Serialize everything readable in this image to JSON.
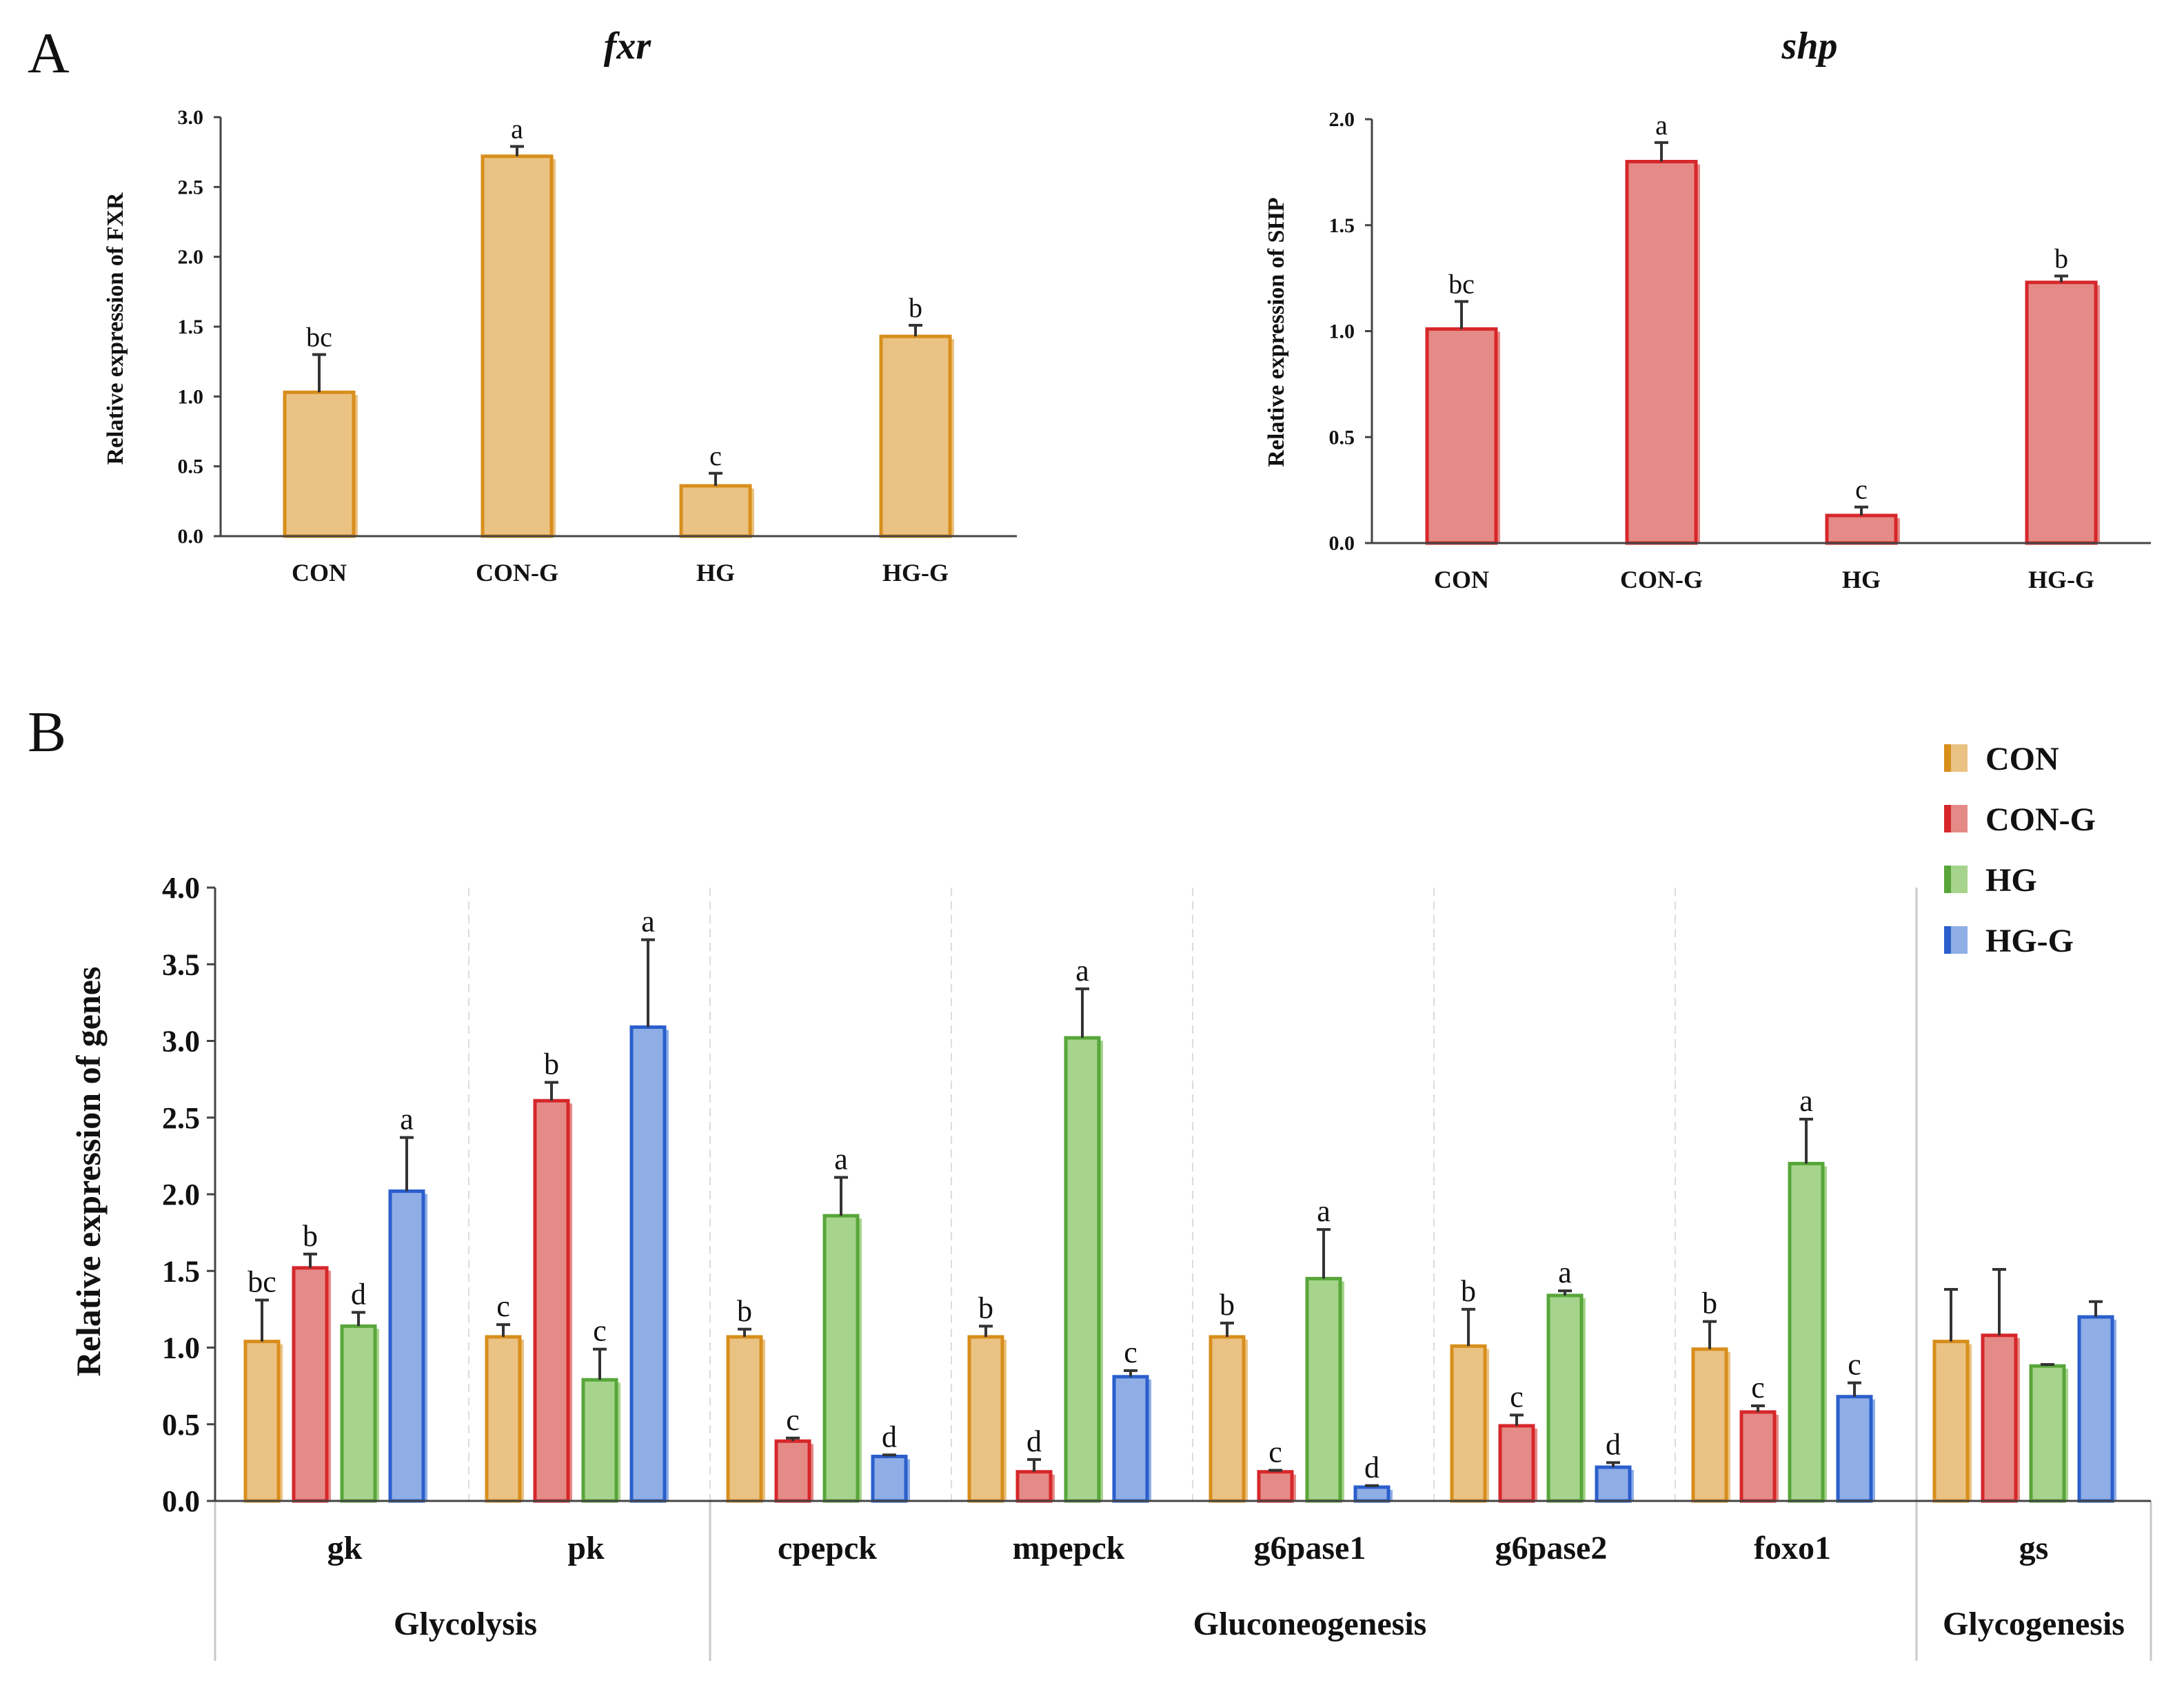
{
  "panels": {
    "a": "A",
    "b": "B"
  },
  "colors": {
    "CON": {
      "fill": "#eac283",
      "stroke": "#d88e1c"
    },
    "CON-G": {
      "fill": "#e58b87",
      "stroke": "#d6272b"
    },
    "HG": {
      "fill": "#a6d48c",
      "stroke": "#58a63a"
    },
    "HG-G": {
      "fill": "#8faee6",
      "stroke": "#2a5fcc"
    }
  },
  "chart_data": [
    {
      "type": "bar",
      "panel": "A",
      "title": "fxr",
      "xlabel": "",
      "ylabel": "Relative expression of FXR",
      "categories": [
        "CON",
        "CON-G",
        "HG",
        "HG-G"
      ],
      "values": [
        1.03,
        2.72,
        0.36,
        1.43
      ],
      "errors": [
        0.27,
        0.07,
        0.09,
        0.08
      ],
      "labels": [
        "bc",
        "a",
        "c",
        "b"
      ],
      "ylim": [
        0,
        3.0
      ],
      "yticks": [
        "0.0",
        "0.5",
        "1.0",
        "1.5",
        "2.0",
        "2.5",
        "3.0"
      ],
      "color": "CON"
    },
    {
      "type": "bar",
      "panel": "A",
      "title": "shp",
      "xlabel": "",
      "ylabel": "Relative expression of SHP",
      "categories": [
        "CON",
        "CON-G",
        "HG",
        "HG-G"
      ],
      "values": [
        1.01,
        1.8,
        0.13,
        1.23
      ],
      "errors": [
        0.13,
        0.09,
        0.04,
        0.03
      ],
      "labels": [
        "bc",
        "a",
        "c",
        "b"
      ],
      "ylim": [
        0,
        2.0
      ],
      "yticks": [
        "0.0",
        "0.5",
        "1.0",
        "1.5",
        "2.0"
      ],
      "color": "CON-G"
    },
    {
      "type": "bar",
      "panel": "B",
      "title": "",
      "xlabel": "",
      "ylabel": "Relative expression of genes",
      "categories": [
        "gk",
        "pk",
        "cpepck",
        "mpepck",
        "g6pase1",
        "g6pase2",
        "foxo1",
        "gs"
      ],
      "groups": [
        {
          "name": "Glycolysis",
          "span": [
            0,
            1
          ]
        },
        {
          "name": "Gluconeogenesis",
          "span": [
            2,
            6
          ]
        },
        {
          "name": "Glycogenesis",
          "span": [
            7,
            7
          ]
        }
      ],
      "ylim": [
        0,
        4.0
      ],
      "yticks": [
        "0.0",
        "0.5",
        "1.0",
        "1.5",
        "2.0",
        "2.5",
        "3.0",
        "3.5",
        "4.0"
      ],
      "legend_position": "top-right",
      "series": [
        {
          "name": "CON",
          "values": [
            1.04,
            1.07,
            1.07,
            1.07,
            1.07,
            1.01,
            0.99,
            1.04
          ],
          "errors": [
            0.27,
            0.08,
            0.05,
            0.07,
            0.09,
            0.24,
            0.18,
            0.34
          ],
          "labels": [
            "bc",
            "c",
            "b",
            "b",
            "b",
            "b",
            "b",
            ""
          ]
        },
        {
          "name": "CON-G",
          "values": [
            1.52,
            2.61,
            0.39,
            0.19,
            0.19,
            0.49,
            0.58,
            1.08
          ],
          "errors": [
            0.09,
            0.12,
            0.02,
            0.08,
            0.01,
            0.07,
            0.04,
            0.43
          ],
          "labels": [
            "b",
            "b",
            "c",
            "d",
            "c",
            "c",
            "c",
            ""
          ]
        },
        {
          "name": "HG",
          "values": [
            1.14,
            0.79,
            1.86,
            3.02,
            1.45,
            1.34,
            2.2,
            0.88
          ],
          "errors": [
            0.09,
            0.2,
            0.25,
            0.32,
            0.32,
            0.03,
            0.29,
            0.01
          ],
          "labels": [
            "d",
            "c",
            "a",
            "a",
            "a",
            "a",
            "a",
            ""
          ]
        },
        {
          "name": "HG-G",
          "values": [
            2.02,
            3.09,
            0.29,
            0.81,
            0.09,
            0.22,
            0.68,
            1.2
          ],
          "errors": [
            0.35,
            0.57,
            0.01,
            0.04,
            0.01,
            0.03,
            0.09,
            0.1
          ],
          "labels": [
            "a",
            "a",
            "d",
            "c",
            "d",
            "d",
            "c",
            ""
          ]
        }
      ]
    }
  ]
}
